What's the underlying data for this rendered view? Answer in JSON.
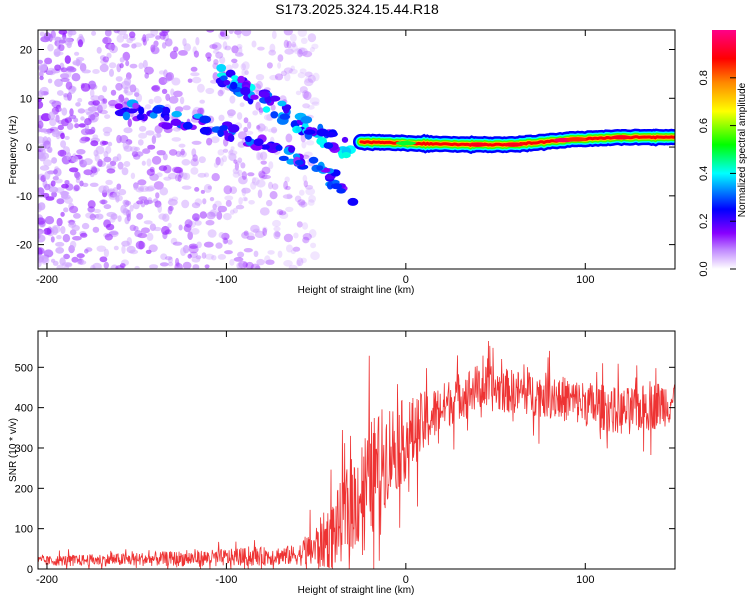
{
  "title": "S173.2025.324.15.44.R18",
  "colors": {
    "snr_line": "#ee3333",
    "axis": "#000000",
    "background": "#ffffff"
  },
  "chart_data": [
    {
      "type": "heatmap",
      "id": "spectrogram",
      "xlabel": "Height of straight line (km)",
      "ylabel": "Frequency (Hz)",
      "xlim": [
        -205,
        150
      ],
      "ylim": [
        -25,
        24
      ],
      "xticks": [
        -200,
        -100,
        0,
        100
      ],
      "xtick_labels": [
        "-200",
        "-100",
        "0",
        "100"
      ],
      "yticks": [
        -20,
        -10,
        0,
        10,
        20
      ],
      "ytick_labels": [
        "-20",
        "-10",
        "0",
        "10",
        "20"
      ],
      "colorbar": {
        "label": "Normalized spectral amplitude",
        "range": [
          0,
          1
        ],
        "ticks": [
          0.0,
          0.2,
          0.4,
          0.6,
          0.8
        ],
        "tick_labels": [
          "0.0",
          "0.2",
          "0.4",
          "0.6",
          "0.8"
        ],
        "colormap": [
          "#ffffff",
          "#8800ff",
          "#0000ff",
          "#00ffff",
          "#00ff00",
          "#ffff00",
          "#ff8800",
          "#ff0000",
          "#ff00aa"
        ]
      },
      "features": [
        {
          "name": "scattered low-amplitude noise",
          "x_range": [
            -205,
            -60
          ],
          "y_range": [
            -25,
            24
          ],
          "amplitude": 0.1
        },
        {
          "name": "upper descending arc",
          "x": [
            -105,
            -80,
            -60,
            -45,
            -30
          ],
          "y": [
            15,
            10,
            5,
            2,
            -1
          ],
          "amplitude": 0.35
        },
        {
          "name": "lower descending arc",
          "x": [
            -160,
            -120,
            -85,
            -55,
            -35,
            -28
          ],
          "y": [
            8,
            5,
            2,
            -3,
            -8,
            -13
          ],
          "amplitude": 0.3
        },
        {
          "name": "carrier line",
          "x": [
            -25,
            0,
            30,
            60,
            90,
            120,
            150
          ],
          "y": [
            1,
            0.8,
            0.5,
            0.5,
            1.5,
            2,
            2
          ],
          "amplitude": 0.95
        }
      ]
    },
    {
      "type": "line",
      "id": "snr",
      "xlabel": "Height of straight line (km)",
      "ylabel": "SNR (10 * v/v)",
      "xlim": [
        -205,
        150
      ],
      "ylim": [
        0,
        590
      ],
      "xticks": [
        -200,
        -100,
        0,
        100
      ],
      "xtick_labels": [
        "-200",
        "-100",
        "0",
        "100"
      ],
      "yticks": [
        0,
        100,
        200,
        300,
        400,
        500
      ],
      "ytick_labels": [
        "0",
        "100",
        "200",
        "300",
        "400",
        "500"
      ],
      "series": [
        {
          "name": "SNR",
          "trend_x": [
            -205,
            -150,
            -100,
            -70,
            -60,
            -50,
            -40,
            -30,
            -20,
            -10,
            0,
            10,
            20,
            30,
            40,
            60,
            80,
            100,
            110,
            120,
            135,
            150
          ],
          "trend_y": [
            20,
            24,
            28,
            33,
            35,
            55,
            90,
            160,
            220,
            290,
            320,
            360,
            400,
            430,
            450,
            440,
            430,
            410,
            400,
            390,
            400,
            420
          ],
          "noise_amplitude_x": [
            -205,
            -60,
            -40,
            -20,
            0,
            20,
            60,
            150
          ],
          "noise_amplitude_y": [
            12,
            25,
            90,
            150,
            100,
            60,
            55,
            60
          ]
        }
      ]
    }
  ]
}
